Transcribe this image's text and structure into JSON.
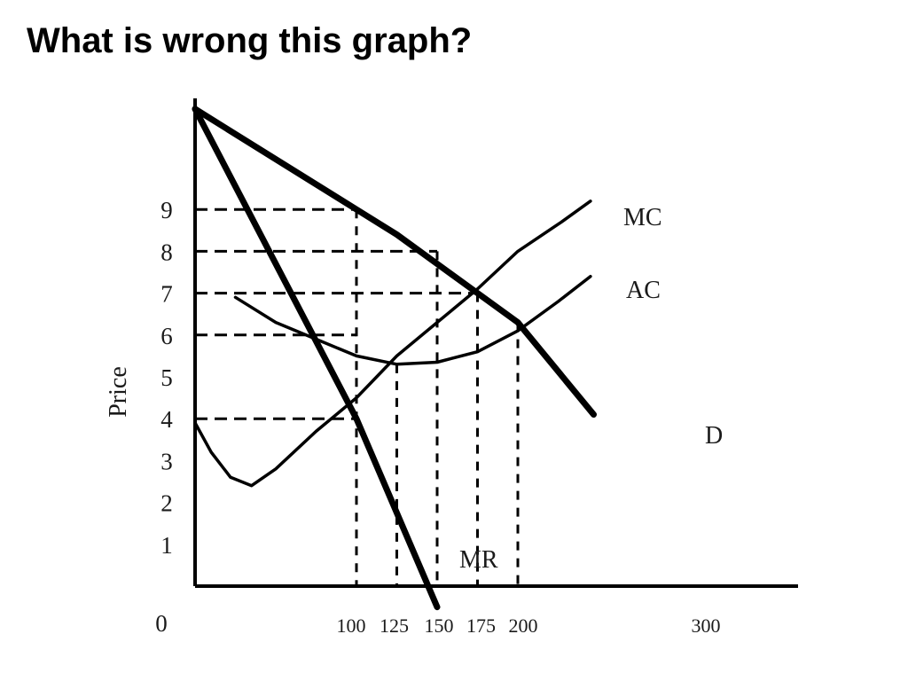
{
  "slide": {
    "title": "What is wrong this graph?"
  },
  "chart_data": {
    "type": "line",
    "title": "",
    "xlabel": "",
    "ylabel": "Price",
    "xlim": [
      0,
      300
    ],
    "ylim": [
      0,
      11.4
    ],
    "grid": false,
    "origin_label": "0",
    "x_ticks": [
      "100",
      "125",
      "150",
      "175",
      "200",
      "300"
    ],
    "x_tick_values": [
      100,
      125,
      150,
      175,
      200,
      300
    ],
    "y_ticks": [
      "1",
      "2",
      "3",
      "4",
      "5",
      "6",
      "7",
      "8",
      "9"
    ],
    "y_tick_values": [
      1,
      2,
      3,
      4,
      5,
      6,
      7,
      8,
      9
    ],
    "series": [
      {
        "name": "D",
        "style": "thick",
        "points": [
          [
            0,
            11.4
          ],
          [
            100,
            9
          ],
          [
            125,
            8.4
          ],
          [
            150,
            7.7
          ],
          [
            175,
            7
          ],
          [
            200,
            6.3
          ],
          [
            247,
            4.1
          ]
        ]
      },
      {
        "name": "MR",
        "style": "thick",
        "points": [
          [
            0,
            11.4
          ],
          [
            100,
            4
          ],
          [
            150,
            -0.5
          ]
        ]
      },
      {
        "name": "MC",
        "style": "thin",
        "points": [
          [
            0,
            3.9
          ],
          [
            10,
            3.2
          ],
          [
            22,
            2.6
          ],
          [
            35,
            2.4
          ],
          [
            50,
            2.8
          ],
          [
            75,
            3.7
          ],
          [
            100,
            4.5
          ],
          [
            125,
            5.5
          ],
          [
            150,
            6.3
          ],
          [
            175,
            7.1
          ],
          [
            200,
            8
          ],
          [
            227,
            8.7
          ],
          [
            245,
            9.2
          ]
        ]
      },
      {
        "name": "AC",
        "style": "thin",
        "points": [
          [
            25,
            6.9
          ],
          [
            50,
            6.3
          ],
          [
            75,
            5.9
          ],
          [
            100,
            5.5
          ],
          [
            125,
            5.3
          ],
          [
            150,
            5.35
          ],
          [
            175,
            5.6
          ],
          [
            200,
            6.1
          ],
          [
            225,
            6.8
          ],
          [
            245,
            7.4
          ]
        ]
      }
    ],
    "guides": [
      {
        "y": 9,
        "x_to": 100
      },
      {
        "y": 8,
        "x_to": 150
      },
      {
        "y": 7,
        "x_to": 175
      },
      {
        "y": 6,
        "x_to": 100
      },
      {
        "y": 4,
        "x_to": 100
      }
    ],
    "vertical_guides": [
      {
        "x": 100,
        "y_to": 9
      },
      {
        "x": 125,
        "y_to": 5.3
      },
      {
        "x": 150,
        "y_to": 8
      },
      {
        "x": 175,
        "y_to": 7
      },
      {
        "x": 200,
        "y_to": 6.3
      }
    ],
    "labels": {
      "MC": "MC",
      "AC": "AC",
      "D": "D",
      "MR": "MR"
    },
    "colors": {
      "lines": "#000000",
      "text": "#1a1a1a"
    }
  }
}
